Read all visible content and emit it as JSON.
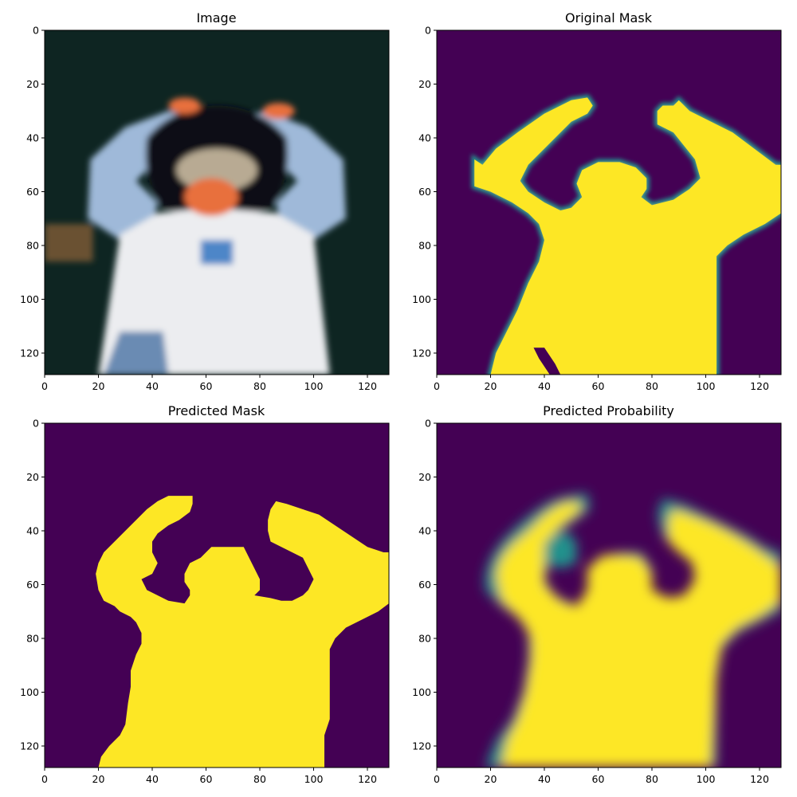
{
  "figure": {
    "panels": [
      {
        "id": "image",
        "title": "Image"
      },
      {
        "id": "original-mask",
        "title": "Original Mask"
      },
      {
        "id": "predicted-mask",
        "title": "Predicted Mask"
      },
      {
        "id": "predicted-probability",
        "title": "Predicted Probability"
      }
    ],
    "x_ticks": [
      "0",
      "20",
      "40",
      "60",
      "80",
      "100",
      "120"
    ],
    "y_ticks": [
      "0",
      "20",
      "40",
      "60",
      "80",
      "100",
      "120"
    ],
    "x_range": [
      0,
      128
    ],
    "y_range": [
      0,
      128
    ],
    "y_inverted": true
  },
  "colors": {
    "mask_background": "#440154",
    "mask_foreground": "#fde725",
    "mask_edge": "#21918c",
    "photo_background": "#0e2522",
    "sleeve": "#9fb9d9",
    "shirt": "#ecedf0",
    "skin": "#e8703d",
    "hair": "#0b0d12",
    "jeans": "#6a8bb3"
  }
}
